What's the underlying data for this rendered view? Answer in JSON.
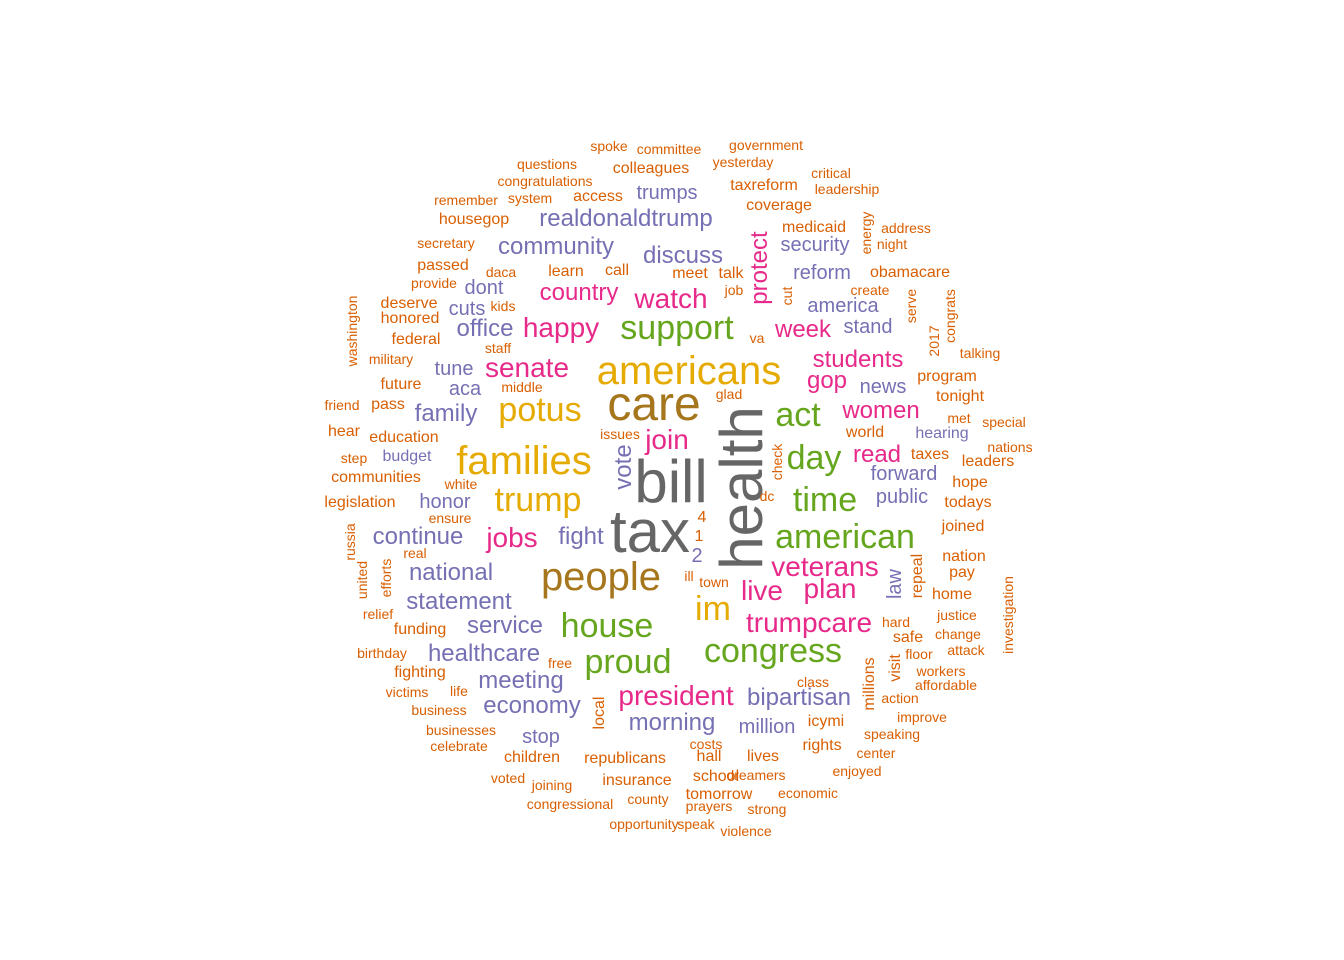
{
  "wordcloud": {
    "words": [
      {
        "t": "health",
        "c": "gray",
        "s": "s7",
        "v": true
      },
      {
        "t": "tax",
        "c": "gray",
        "s": "s7"
      },
      {
        "t": "bill",
        "c": "gray",
        "s": "s7"
      },
      {
        "t": "care",
        "c": "brown",
        "s": "s6"
      },
      {
        "t": "people",
        "c": "brown",
        "s": "s5"
      },
      {
        "t": "americans",
        "c": "gold",
        "s": "s5"
      },
      {
        "t": "families",
        "c": "gold",
        "s": "s5"
      },
      {
        "t": "potus",
        "c": "gold",
        "s": "s4"
      },
      {
        "t": "trump",
        "c": "gold",
        "s": "s4"
      },
      {
        "t": "im",
        "c": "gold",
        "s": "s4"
      },
      {
        "t": "support",
        "c": "green",
        "s": "s4"
      },
      {
        "t": "act",
        "c": "green",
        "s": "s4"
      },
      {
        "t": "day",
        "c": "green",
        "s": "s4"
      },
      {
        "t": "time",
        "c": "green",
        "s": "s4"
      },
      {
        "t": "american",
        "c": "green",
        "s": "s4"
      },
      {
        "t": "house",
        "c": "green",
        "s": "s4"
      },
      {
        "t": "proud",
        "c": "green",
        "s": "s4"
      },
      {
        "t": "congress",
        "c": "green",
        "s": "s4"
      },
      {
        "t": "senate",
        "c": "pink",
        "s": "s3"
      },
      {
        "t": "happy",
        "c": "pink",
        "s": "s3"
      },
      {
        "t": "watch",
        "c": "pink",
        "s": "s3"
      },
      {
        "t": "jobs",
        "c": "pink",
        "s": "s3"
      },
      {
        "t": "join",
        "c": "pink",
        "s": "s3"
      },
      {
        "t": "president",
        "c": "pink",
        "s": "s3"
      },
      {
        "t": "plan",
        "c": "pink",
        "s": "s3"
      },
      {
        "t": "live",
        "c": "pink",
        "s": "s3"
      },
      {
        "t": "veterans",
        "c": "pink",
        "s": "s3"
      },
      {
        "t": "trumpcare",
        "c": "pink",
        "s": "s3"
      },
      {
        "t": "week",
        "c": "pink",
        "s": "s2"
      },
      {
        "t": "country",
        "c": "pink",
        "s": "s2"
      },
      {
        "t": "women",
        "c": "pink",
        "s": "s2"
      },
      {
        "t": "read",
        "c": "pink",
        "s": "s2"
      },
      {
        "t": "students",
        "c": "pink",
        "s": "s2"
      },
      {
        "t": "gop",
        "c": "pink",
        "s": "s2"
      },
      {
        "t": "protect",
        "c": "pink",
        "s": "s2",
        "v": true
      },
      {
        "t": "fight",
        "c": "purple",
        "s": "s2"
      },
      {
        "t": "realdonaldtrump",
        "c": "purple",
        "s": "s2"
      },
      {
        "t": "community",
        "c": "purple",
        "s": "s2"
      },
      {
        "t": "discuss",
        "c": "purple",
        "s": "s2"
      },
      {
        "t": "office",
        "c": "purple",
        "s": "s2"
      },
      {
        "t": "family",
        "c": "purple",
        "s": "s2"
      },
      {
        "t": "national",
        "c": "purple",
        "s": "s2"
      },
      {
        "t": "statement",
        "c": "purple",
        "s": "s2"
      },
      {
        "t": "service",
        "c": "purple",
        "s": "s2"
      },
      {
        "t": "healthcare",
        "c": "purple",
        "s": "s2"
      },
      {
        "t": "meeting",
        "c": "purple",
        "s": "s2"
      },
      {
        "t": "economy",
        "c": "purple",
        "s": "s2"
      },
      {
        "t": "morning",
        "c": "purple",
        "s": "s2"
      },
      {
        "t": "bipartisan",
        "c": "purple",
        "s": "s2"
      },
      {
        "t": "continue",
        "c": "purple",
        "s": "s2"
      },
      {
        "t": "honor",
        "c": "purple",
        "s": "s1"
      },
      {
        "t": "vote",
        "c": "purple",
        "s": "s2",
        "v": true
      },
      {
        "t": "america",
        "c": "purple",
        "s": "s1"
      },
      {
        "t": "stand",
        "c": "purple",
        "s": "s1"
      },
      {
        "t": "reform",
        "c": "purple",
        "s": "s1"
      },
      {
        "t": "security",
        "c": "purple",
        "s": "s1"
      },
      {
        "t": "trumps",
        "c": "purple",
        "s": "s1"
      },
      {
        "t": "forward",
        "c": "purple",
        "s": "s1"
      },
      {
        "t": "public",
        "c": "purple",
        "s": "s1"
      },
      {
        "t": "tune",
        "c": "purple",
        "s": "s1"
      },
      {
        "t": "aca",
        "c": "purple",
        "s": "s1"
      },
      {
        "t": "cuts",
        "c": "purple",
        "s": "s1"
      },
      {
        "t": "dont",
        "c": "purple",
        "s": "s1"
      },
      {
        "t": "news",
        "c": "purple",
        "s": "s1"
      },
      {
        "t": "hearing",
        "c": "purple",
        "s": "s0"
      },
      {
        "t": "budget",
        "c": "purple",
        "s": "s0"
      },
      {
        "t": "stop",
        "c": "purple",
        "s": "s1"
      },
      {
        "t": "million",
        "c": "purple",
        "s": "s1"
      },
      {
        "t": "law",
        "c": "purple",
        "s": "s1",
        "v": true
      },
      {
        "t": "2",
        "c": "purple",
        "s": "s1"
      },
      {
        "t": "4",
        "c": "orange",
        "s": "s0"
      },
      {
        "t": "1",
        "c": "orange",
        "s": "s0"
      },
      {
        "t": "colleagues",
        "c": "orange",
        "s": "s0"
      },
      {
        "t": "access",
        "c": "orange",
        "s": "s0"
      },
      {
        "t": "congratulations",
        "c": "orange",
        "s": "sx"
      },
      {
        "t": "questions",
        "c": "orange",
        "s": "sx"
      },
      {
        "t": "spoke",
        "c": "orange",
        "s": "sx"
      },
      {
        "t": "committee",
        "c": "orange",
        "s": "sx"
      },
      {
        "t": "government",
        "c": "orange",
        "s": "sx"
      },
      {
        "t": "yesterday",
        "c": "orange",
        "s": "sx"
      },
      {
        "t": "critical",
        "c": "orange",
        "s": "sx"
      },
      {
        "t": "leadership",
        "c": "orange",
        "s": "sx"
      },
      {
        "t": "taxreform",
        "c": "orange",
        "s": "s0"
      },
      {
        "t": "remember",
        "c": "orange",
        "s": "sx"
      },
      {
        "t": "system",
        "c": "orange",
        "s": "sx"
      },
      {
        "t": "housegop",
        "c": "orange",
        "s": "s0"
      },
      {
        "t": "coverage",
        "c": "orange",
        "s": "s0"
      },
      {
        "t": "medicaid",
        "c": "orange",
        "s": "s0"
      },
      {
        "t": "energy",
        "c": "orange",
        "s": "sx",
        "v": true
      },
      {
        "t": "address",
        "c": "orange",
        "s": "sx"
      },
      {
        "t": "night",
        "c": "orange",
        "s": "sx"
      },
      {
        "t": "secretary",
        "c": "orange",
        "s": "sx"
      },
      {
        "t": "passed",
        "c": "orange",
        "s": "s0"
      },
      {
        "t": "daca",
        "c": "orange",
        "s": "sx"
      },
      {
        "t": "learn",
        "c": "orange",
        "s": "s0"
      },
      {
        "t": "call",
        "c": "orange",
        "s": "s0"
      },
      {
        "t": "meet",
        "c": "orange",
        "s": "s0"
      },
      {
        "t": "talk",
        "c": "orange",
        "s": "s0"
      },
      {
        "t": "obamacare",
        "c": "orange",
        "s": "s0"
      },
      {
        "t": "provide",
        "c": "orange",
        "s": "sx"
      },
      {
        "t": "job",
        "c": "orange",
        "s": "sx"
      },
      {
        "t": "cut",
        "c": "orange",
        "s": "sx",
        "v": true
      },
      {
        "t": "create",
        "c": "orange",
        "s": "sx"
      },
      {
        "t": "deserve",
        "c": "orange",
        "s": "s0"
      },
      {
        "t": "kids",
        "c": "orange",
        "s": "sx"
      },
      {
        "t": "honored",
        "c": "orange",
        "s": "s0"
      },
      {
        "t": "washington",
        "c": "orange",
        "s": "sx",
        "v": true
      },
      {
        "t": "federal",
        "c": "orange",
        "s": "s0"
      },
      {
        "t": "staff",
        "c": "orange",
        "s": "sx"
      },
      {
        "t": "va",
        "c": "orange",
        "s": "sx"
      },
      {
        "t": "serve",
        "c": "orange",
        "s": "sx",
        "v": true
      },
      {
        "t": "congrats",
        "c": "orange",
        "s": "sx",
        "v": true
      },
      {
        "t": "2017",
        "c": "orange",
        "s": "sx",
        "v": true
      },
      {
        "t": "military",
        "c": "orange",
        "s": "sx"
      },
      {
        "t": "talking",
        "c": "orange",
        "s": "sx"
      },
      {
        "t": "middle",
        "c": "orange",
        "s": "sx"
      },
      {
        "t": "future",
        "c": "orange",
        "s": "s0"
      },
      {
        "t": "program",
        "c": "orange",
        "s": "s0"
      },
      {
        "t": "glad",
        "c": "orange",
        "s": "sx"
      },
      {
        "t": "friend",
        "c": "orange",
        "s": "sx"
      },
      {
        "t": "pass",
        "c": "orange",
        "s": "s0"
      },
      {
        "t": "tonight",
        "c": "orange",
        "s": "s0"
      },
      {
        "t": "met",
        "c": "orange",
        "s": "sx"
      },
      {
        "t": "special",
        "c": "orange",
        "s": "sx"
      },
      {
        "t": "hear",
        "c": "orange",
        "s": "s0"
      },
      {
        "t": "education",
        "c": "orange",
        "s": "s0"
      },
      {
        "t": "issues",
        "c": "orange",
        "s": "sx"
      },
      {
        "t": "world",
        "c": "orange",
        "s": "s0"
      },
      {
        "t": "nations",
        "c": "orange",
        "s": "sx"
      },
      {
        "t": "check",
        "c": "orange",
        "s": "sx",
        "v": true
      },
      {
        "t": "step",
        "c": "orange",
        "s": "sx"
      },
      {
        "t": "taxes",
        "c": "orange",
        "s": "s0"
      },
      {
        "t": "leaders",
        "c": "orange",
        "s": "s0"
      },
      {
        "t": "communities",
        "c": "orange",
        "s": "s0"
      },
      {
        "t": "white",
        "c": "orange",
        "s": "sx"
      },
      {
        "t": "hope",
        "c": "orange",
        "s": "s0"
      },
      {
        "t": "dc",
        "c": "orange",
        "s": "sx"
      },
      {
        "t": "legislation",
        "c": "orange",
        "s": "s0"
      },
      {
        "t": "todays",
        "c": "orange",
        "s": "s0"
      },
      {
        "t": "ensure",
        "c": "orange",
        "s": "sx"
      },
      {
        "t": "joined",
        "c": "orange",
        "s": "s0"
      },
      {
        "t": "russia",
        "c": "orange",
        "s": "sx",
        "v": true
      },
      {
        "t": "real",
        "c": "orange",
        "s": "sx"
      },
      {
        "t": "nation",
        "c": "orange",
        "s": "s0"
      },
      {
        "t": "united",
        "c": "orange",
        "s": "sx",
        "v": true
      },
      {
        "t": "efforts",
        "c": "orange",
        "s": "sx",
        "v": true
      },
      {
        "t": "pay",
        "c": "orange",
        "s": "s0"
      },
      {
        "t": "ill",
        "c": "orange",
        "s": "sx"
      },
      {
        "t": "town",
        "c": "orange",
        "s": "sx"
      },
      {
        "t": "repeal",
        "c": "orange",
        "s": "s0",
        "v": true
      },
      {
        "t": "home",
        "c": "orange",
        "s": "s0"
      },
      {
        "t": "investigation",
        "c": "orange",
        "s": "sx",
        "v": true
      },
      {
        "t": "relief",
        "c": "orange",
        "s": "sx"
      },
      {
        "t": "justice",
        "c": "orange",
        "s": "sx"
      },
      {
        "t": "funding",
        "c": "orange",
        "s": "s0"
      },
      {
        "t": "hard",
        "c": "orange",
        "s": "sx"
      },
      {
        "t": "safe",
        "c": "orange",
        "s": "s0"
      },
      {
        "t": "change",
        "c": "orange",
        "s": "sx"
      },
      {
        "t": "birthday",
        "c": "orange",
        "s": "sx"
      },
      {
        "t": "floor",
        "c": "orange",
        "s": "sx"
      },
      {
        "t": "attack",
        "c": "orange",
        "s": "sx"
      },
      {
        "t": "free",
        "c": "orange",
        "s": "sx"
      },
      {
        "t": "millions",
        "c": "orange",
        "s": "s0",
        "v": true
      },
      {
        "t": "visit",
        "c": "orange",
        "s": "s0",
        "v": true
      },
      {
        "t": "fighting",
        "c": "orange",
        "s": "s0"
      },
      {
        "t": "workers",
        "c": "orange",
        "s": "sx"
      },
      {
        "t": "affordable",
        "c": "orange",
        "s": "sx"
      },
      {
        "t": "victims",
        "c": "orange",
        "s": "sx"
      },
      {
        "t": "life",
        "c": "orange",
        "s": "sx"
      },
      {
        "t": "class",
        "c": "orange",
        "s": "sx"
      },
      {
        "t": "action",
        "c": "orange",
        "s": "sx"
      },
      {
        "t": "local",
        "c": "orange",
        "s": "s0",
        "v": true
      },
      {
        "t": "business",
        "c": "orange",
        "s": "sx"
      },
      {
        "t": "icymi",
        "c": "orange",
        "s": "s0"
      },
      {
        "t": "improve",
        "c": "orange",
        "s": "sx"
      },
      {
        "t": "businesses",
        "c": "orange",
        "s": "sx"
      },
      {
        "t": "speaking",
        "c": "orange",
        "s": "sx"
      },
      {
        "t": "celebrate",
        "c": "orange",
        "s": "sx"
      },
      {
        "t": "rights",
        "c": "orange",
        "s": "s0"
      },
      {
        "t": "costs",
        "c": "orange",
        "s": "sx"
      },
      {
        "t": "center",
        "c": "orange",
        "s": "sx"
      },
      {
        "t": "children",
        "c": "orange",
        "s": "s0"
      },
      {
        "t": "republicans",
        "c": "orange",
        "s": "s0"
      },
      {
        "t": "hall",
        "c": "orange",
        "s": "s0"
      },
      {
        "t": "lives",
        "c": "orange",
        "s": "s0"
      },
      {
        "t": "enjoyed",
        "c": "orange",
        "s": "sx"
      },
      {
        "t": "school",
        "c": "orange",
        "s": "s0"
      },
      {
        "t": "dreamers",
        "c": "orange",
        "s": "sx"
      },
      {
        "t": "voted",
        "c": "orange",
        "s": "sx"
      },
      {
        "t": "insurance",
        "c": "orange",
        "s": "s0"
      },
      {
        "t": "joining",
        "c": "orange",
        "s": "sx"
      },
      {
        "t": "tomorrow",
        "c": "orange",
        "s": "s0"
      },
      {
        "t": "economic",
        "c": "orange",
        "s": "sx"
      },
      {
        "t": "congressional",
        "c": "orange",
        "s": "sx"
      },
      {
        "t": "county",
        "c": "orange",
        "s": "sx"
      },
      {
        "t": "prayers",
        "c": "orange",
        "s": "sx"
      },
      {
        "t": "strong",
        "c": "orange",
        "s": "sx"
      },
      {
        "t": "opportunity",
        "c": "orange",
        "s": "sx"
      },
      {
        "t": "speak",
        "c": "orange",
        "s": "sx"
      },
      {
        "t": "violence",
        "c": "orange",
        "s": "sx"
      }
    ]
  }
}
